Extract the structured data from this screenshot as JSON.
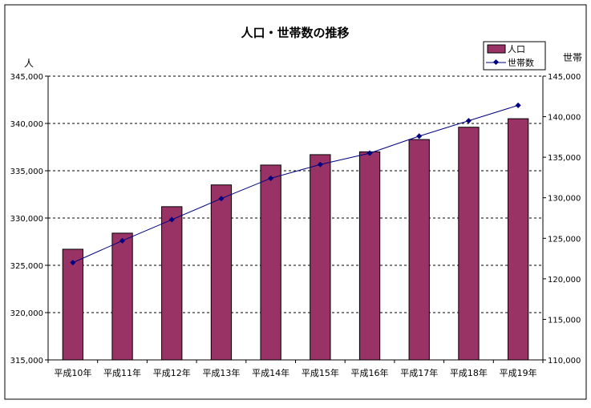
{
  "chart_data": {
    "type": "bar",
    "title": "人口・世帯数の推移",
    "categories": [
      "平成10年",
      "平成11年",
      "平成12年",
      "平成13年",
      "平成14年",
      "平成15年",
      "平成16年",
      "平成17年",
      "平成18年",
      "平成19年"
    ],
    "series": [
      {
        "name": "人口",
        "type": "bar",
        "axis": "left",
        "color": "#993366",
        "values": [
          326700,
          328400,
          331200,
          333500,
          335600,
          336700,
          337000,
          338300,
          339600,
          340500
        ]
      },
      {
        "name": "世帯数",
        "type": "line",
        "axis": "right",
        "color": "#000080",
        "values": [
          122000,
          124700,
          127300,
          129900,
          132400,
          134100,
          135500,
          137600,
          139500,
          141400
        ]
      }
    ],
    "y_left": {
      "label": "人",
      "range": [
        315000,
        345000
      ],
      "ticks": [
        "315,000",
        "320,000",
        "325,000",
        "330,000",
        "335,000",
        "340,000",
        "345,000"
      ],
      "tick_values": [
        315000,
        320000,
        325000,
        330000,
        335000,
        340000,
        345000
      ]
    },
    "y_right": {
      "label": "世帯",
      "range": [
        110000,
        145000
      ],
      "ticks": [
        "110,000",
        "115,000",
        "120,000",
        "125,000",
        "130,000",
        "135,000",
        "140,000",
        "145,000"
      ],
      "tick_values": [
        110000,
        115000,
        120000,
        125000,
        130000,
        135000,
        140000,
        145000
      ]
    },
    "grid": "horizontal-dashed",
    "legend_position": "top-right"
  }
}
